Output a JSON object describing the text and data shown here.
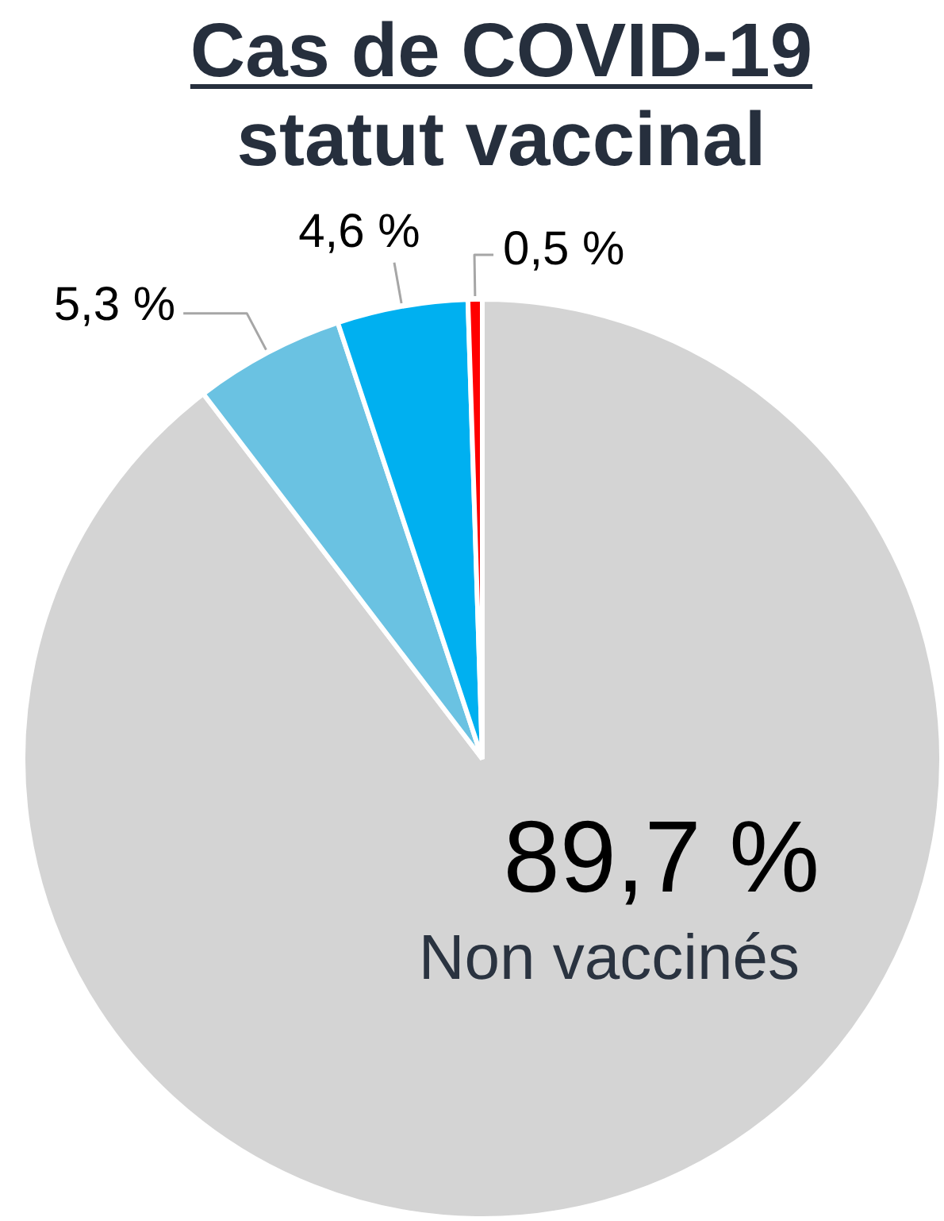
{
  "chart_data": {
    "type": "pie",
    "title": "Cas de COVID-19",
    "subtitle": "statut vaccinal",
    "categories": [
      "Non vaccinés",
      null,
      null,
      null
    ],
    "values": [
      89.7,
      5.3,
      4.6,
      0.5
    ],
    "colors": [
      "#d4d4d4",
      "#6ac2e2",
      "#00b0f0",
      "#ff0000"
    ],
    "value_labels": [
      "89,7 %",
      "5,3 %",
      "4,6 %",
      "0,5 %"
    ]
  }
}
